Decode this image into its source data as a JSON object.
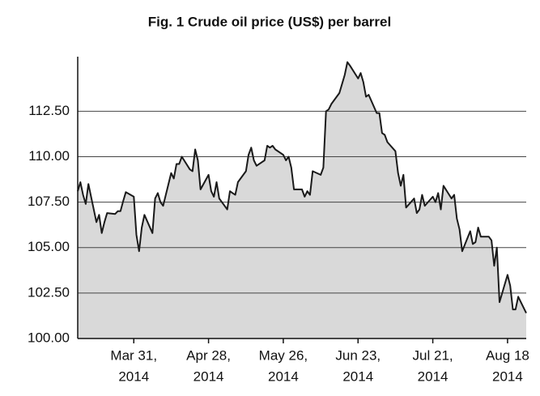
{
  "chart_data": {
    "type": "area",
    "title": "Fig. 1  Crude oil price (US$) per barrel",
    "x": [
      "2014-03-10",
      "2014-03-11",
      "2014-03-12",
      "2014-03-13",
      "2014-03-14",
      "2014-03-17",
      "2014-03-18",
      "2014-03-19",
      "2014-03-20",
      "2014-03-21",
      "2014-03-24",
      "2014-03-25",
      "2014-03-26",
      "2014-03-27",
      "2014-03-28",
      "2014-03-31",
      "2014-04-01",
      "2014-04-02",
      "2014-04-03",
      "2014-04-04",
      "2014-04-07",
      "2014-04-08",
      "2014-04-09",
      "2014-04-10",
      "2014-04-11",
      "2014-04-14",
      "2014-04-15",
      "2014-04-16",
      "2014-04-17",
      "2014-04-18",
      "2014-04-21",
      "2014-04-22",
      "2014-04-23",
      "2014-04-24",
      "2014-04-25",
      "2014-04-28",
      "2014-04-29",
      "2014-04-30",
      "2014-05-01",
      "2014-05-02",
      "2014-05-05",
      "2014-05-06",
      "2014-05-07",
      "2014-05-08",
      "2014-05-09",
      "2014-05-12",
      "2014-05-13",
      "2014-05-14",
      "2014-05-15",
      "2014-05-16",
      "2014-05-19",
      "2014-05-20",
      "2014-05-21",
      "2014-05-22",
      "2014-05-23",
      "2014-05-26",
      "2014-05-27",
      "2014-05-28",
      "2014-05-29",
      "2014-05-30",
      "2014-06-02",
      "2014-06-03",
      "2014-06-04",
      "2014-06-05",
      "2014-06-06",
      "2014-06-09",
      "2014-06-10",
      "2014-06-11",
      "2014-06-12",
      "2014-06-13",
      "2014-06-16",
      "2014-06-17",
      "2014-06-18",
      "2014-06-19",
      "2014-06-20",
      "2014-06-23",
      "2014-06-24",
      "2014-06-25",
      "2014-06-26",
      "2014-06-27",
      "2014-06-30",
      "2014-07-01",
      "2014-07-02",
      "2014-07-03",
      "2014-07-04",
      "2014-07-07",
      "2014-07-08",
      "2014-07-09",
      "2014-07-10",
      "2014-07-11",
      "2014-07-14",
      "2014-07-15",
      "2014-07-16",
      "2014-07-17",
      "2014-07-18",
      "2014-07-21",
      "2014-07-22",
      "2014-07-23",
      "2014-07-24",
      "2014-07-25",
      "2014-07-28",
      "2014-07-29",
      "2014-07-30",
      "2014-07-31",
      "2014-08-01",
      "2014-08-04",
      "2014-08-05",
      "2014-08-06",
      "2014-08-07",
      "2014-08-08",
      "2014-08-11",
      "2014-08-12",
      "2014-08-13",
      "2014-08-14",
      "2014-08-15",
      "2014-08-18",
      "2014-08-19",
      "2014-08-20",
      "2014-08-21",
      "2014-08-22",
      "2014-08-25"
    ],
    "values": [
      108.1,
      108.6,
      107.9,
      107.4,
      108.5,
      106.4,
      106.8,
      105.8,
      106.4,
      106.9,
      106.85,
      107.0,
      107.0,
      107.55,
      108.05,
      107.8,
      105.7,
      104.8,
      106.1,
      106.8,
      105.8,
      107.7,
      108.0,
      107.5,
      107.3,
      109.1,
      108.8,
      109.6,
      109.6,
      110.0,
      109.3,
      109.2,
      110.4,
      109.8,
      108.2,
      109.0,
      108.1,
      107.8,
      108.6,
      107.7,
      107.1,
      108.1,
      108.0,
      107.9,
      108.6,
      109.2,
      110.1,
      110.5,
      109.8,
      109.5,
      109.8,
      110.6,
      110.5,
      110.6,
      110.4,
      110.1,
      109.8,
      110.0,
      109.4,
      108.2,
      108.2,
      107.8,
      108.1,
      107.9,
      109.2,
      109.0,
      109.4,
      112.5,
      112.6,
      112.9,
      113.5,
      114.0,
      114.5,
      115.2,
      115.0,
      114.3,
      114.6,
      114.1,
      113.3,
      113.4,
      112.4,
      112.4,
      111.3,
      111.2,
      110.8,
      110.3,
      109.1,
      108.4,
      109.0,
      107.2,
      107.7,
      106.9,
      107.1,
      107.9,
      107.3,
      107.8,
      107.5,
      108.0,
      107.1,
      108.4,
      107.7,
      107.9,
      106.6,
      106.0,
      104.8,
      105.9,
      105.2,
      105.3,
      106.1,
      105.6,
      105.6,
      105.4,
      104.0,
      105.0,
      102.0,
      103.5,
      102.9,
      101.6,
      101.6,
      102.3,
      101.4
    ],
    "color": "#d9d9d9",
    "line_color": "#1a1a1a",
    "xlim": [
      "2014-03-10",
      "2014-08-25"
    ],
    "xticks": [
      {
        "value": "2014-03-31",
        "label": [
          "Mar 31,",
          "2014"
        ]
      },
      {
        "value": "2014-04-28",
        "label": [
          "Apr 28,",
          "2014"
        ]
      },
      {
        "value": "2014-05-26",
        "label": [
          "May 26,",
          "2014"
        ]
      },
      {
        "value": "2014-06-23",
        "label": [
          "Jun 23,",
          "2014"
        ]
      },
      {
        "value": "2014-07-21",
        "label": [
          "Jul 21,",
          "2014"
        ]
      },
      {
        "value": "2014-08-18",
        "label": [
          "Aug 18",
          "2014"
        ]
      }
    ],
    "ylim": [
      100,
      115.5
    ],
    "yticks": [
      {
        "value": 100,
        "label": "100.00"
      },
      {
        "value": 102.5,
        "label": "102.50"
      },
      {
        "value": 105,
        "label": "105.00"
      },
      {
        "value": 107.5,
        "label": "107.50"
      },
      {
        "value": 110,
        "label": "110.00"
      },
      {
        "value": 112.5,
        "label": "112.50"
      }
    ],
    "grid": true
  }
}
